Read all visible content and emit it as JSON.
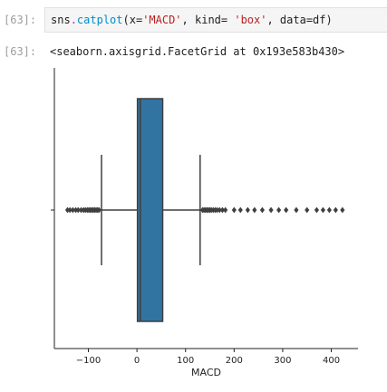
{
  "cell": {
    "in_prompt": "[63]:",
    "code": {
      "obj": "sns",
      "dot": ".",
      "func": "catplot",
      "open": "(x=",
      "x_value": "'MACD'",
      "sep1": ", kind= ",
      "kind_value": "'box'",
      "sep2": ", data=df)"
    },
    "out_prompt": "[63]:",
    "output": "<seaborn.axisgrid.FacetGrid at 0x193e583b430>"
  },
  "chart_data": {
    "type": "box",
    "orientation": "horizontal",
    "title": "",
    "xlabel": "MACD",
    "ylabel": "",
    "xlim": [
      -170,
      455
    ],
    "xticks": [
      -100,
      0,
      100,
      200,
      300,
      400
    ],
    "xtick_labels": [
      "−100",
      "0",
      "100",
      "200",
      "300",
      "400"
    ],
    "box": {
      "whisker_low": -73,
      "q1": 1,
      "median": 7,
      "q3": 53,
      "whisker_high": 130
    },
    "outliers": [
      -143,
      -138,
      -132,
      -126,
      -121,
      -115,
      -110,
      -106,
      -102,
      -99,
      -96,
      -93,
      -90,
      -87,
      -84,
      -81,
      -78,
      135,
      138,
      141,
      144,
      147,
      150,
      153,
      157,
      161,
      165,
      170,
      176,
      182,
      200,
      213,
      228,
      242,
      258,
      276,
      292,
      307,
      328,
      350,
      370,
      383,
      396,
      409,
      423
    ],
    "colors": {
      "box": "#3274a1",
      "lines": "#3f3f3f",
      "outlier": "#3f3f3f"
    },
    "grid": false
  }
}
